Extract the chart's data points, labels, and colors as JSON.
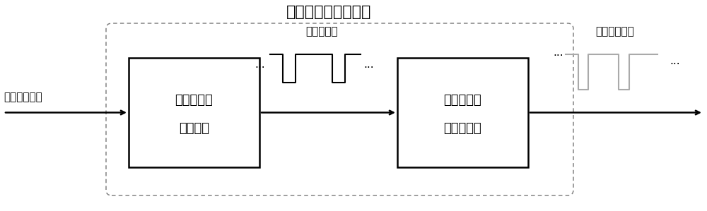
{
  "title": "单帧检测及复位模块",
  "block1_line1": "帧同步信号",
  "block1_line2": "提取电路",
  "block2_line1": "单帧复位信",
  "block2_line2": "号产生电路",
  "input_label": "输入各帧数据",
  "signal1_label": "帧同步信号",
  "signal2_label": "单帧复位信号",
  "dots": "···",
  "bg_color": "#ffffff",
  "box_color": "#000000",
  "dashed_box_color": "#777777",
  "text_color": "#000000",
  "signal_color": "#aaaaaa",
  "title_fontsize": 16,
  "label_fontsize": 13,
  "small_fontsize": 11,
  "dots_fontsize": 11,
  "fig_width": 10.0,
  "fig_height": 2.99
}
